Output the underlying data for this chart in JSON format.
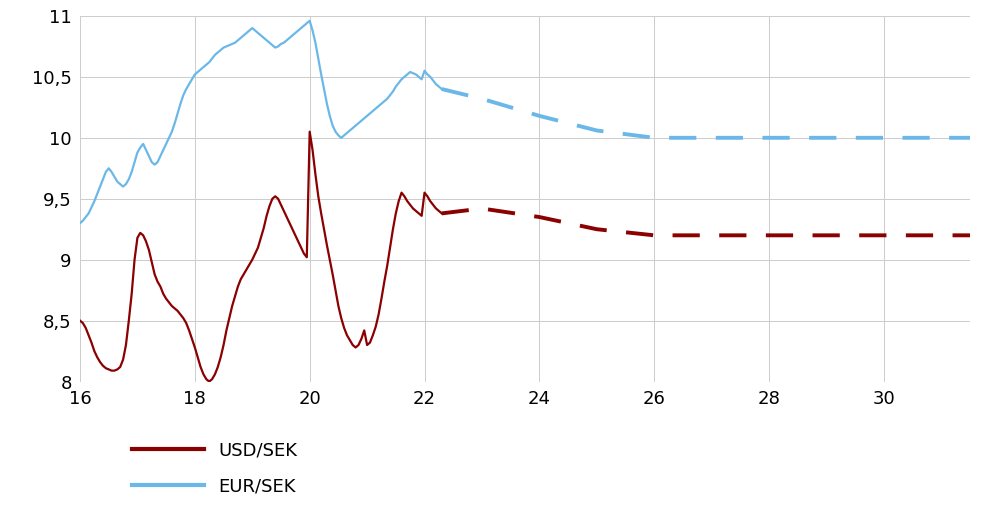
{
  "background_color": "#ffffff",
  "usd_color": "#8B0000",
  "eur_color": "#6BB8E8",
  "ylim": [
    8.0,
    11.0
  ],
  "xlim": [
    16,
    31.5
  ],
  "yticks": [
    8.0,
    8.5,
    9.0,
    9.5,
    10.0,
    10.5,
    11.0
  ],
  "xticks": [
    16,
    18,
    20,
    22,
    24,
    26,
    28,
    30
  ],
  "ytick_labels": [
    "8",
    "8,5",
    "9",
    "9,5",
    "10",
    "10,5",
    "11"
  ],
  "xtick_labels": [
    "16",
    "18",
    "20",
    "22",
    "24",
    "26",
    "28",
    "30"
  ],
  "legend_usd": "USD/SEK",
  "legend_eur": "EUR/SEK",
  "usd_solid_x": [
    16.0,
    16.05,
    16.1,
    16.15,
    16.2,
    16.25,
    16.3,
    16.35,
    16.4,
    16.45,
    16.5,
    16.55,
    16.6,
    16.65,
    16.7,
    16.75,
    16.8,
    16.85,
    16.9,
    16.95,
    17.0,
    17.05,
    17.1,
    17.15,
    17.2,
    17.25,
    17.3,
    17.35,
    17.4,
    17.45,
    17.5,
    17.55,
    17.6,
    17.65,
    17.7,
    17.75,
    17.8,
    17.85,
    17.9,
    17.95,
    18.0,
    18.05,
    18.1,
    18.15,
    18.2,
    18.25,
    18.3,
    18.35,
    18.4,
    18.45,
    18.5,
    18.55,
    18.6,
    18.65,
    18.7,
    18.75,
    18.8,
    18.85,
    18.9,
    18.95,
    19.0,
    19.05,
    19.1,
    19.15,
    19.2,
    19.25,
    19.3,
    19.35,
    19.4,
    19.45,
    19.5,
    19.55,
    19.6,
    19.65,
    19.7,
    19.75,
    19.8,
    19.85,
    19.9,
    19.95,
    20.0,
    20.05,
    20.1,
    20.15,
    20.2,
    20.25,
    20.3,
    20.35,
    20.4,
    20.45,
    20.5,
    20.55,
    20.6,
    20.65,
    20.7,
    20.75,
    20.8,
    20.85,
    20.9,
    20.95,
    21.0,
    21.05,
    21.1,
    21.15,
    21.2,
    21.25,
    21.3,
    21.35,
    21.4,
    21.45,
    21.5,
    21.55,
    21.6,
    21.65,
    21.7,
    21.75,
    21.8,
    21.85,
    21.9,
    21.95,
    22.0,
    22.05,
    22.1,
    22.15,
    22.2,
    22.25,
    22.3
  ],
  "usd_solid_y": [
    8.5,
    8.48,
    8.44,
    8.38,
    8.32,
    8.25,
    8.2,
    8.16,
    8.13,
    8.11,
    8.1,
    8.09,
    8.09,
    8.1,
    8.12,
    8.18,
    8.3,
    8.5,
    8.72,
    9.0,
    9.18,
    9.22,
    9.2,
    9.15,
    9.08,
    8.98,
    8.88,
    8.82,
    8.78,
    8.72,
    8.68,
    8.65,
    8.62,
    8.6,
    8.58,
    8.55,
    8.52,
    8.48,
    8.42,
    8.35,
    8.28,
    8.2,
    8.12,
    8.06,
    8.02,
    8.0,
    8.02,
    8.06,
    8.12,
    8.2,
    8.3,
    8.42,
    8.52,
    8.62,
    8.7,
    8.78,
    8.84,
    8.88,
    8.92,
    8.96,
    9.0,
    9.05,
    9.1,
    9.18,
    9.26,
    9.36,
    9.44,
    9.5,
    9.52,
    9.5,
    9.45,
    9.4,
    9.35,
    9.3,
    9.25,
    9.2,
    9.15,
    9.1,
    9.05,
    9.02,
    10.05,
    9.9,
    9.7,
    9.52,
    9.38,
    9.25,
    9.12,
    9.0,
    8.88,
    8.75,
    8.62,
    8.52,
    8.44,
    8.38,
    8.34,
    8.3,
    8.28,
    8.3,
    8.35,
    8.42,
    8.3,
    8.32,
    8.38,
    8.45,
    8.55,
    8.68,
    8.82,
    8.95,
    9.1,
    9.25,
    9.38,
    9.48,
    9.55,
    9.52,
    9.48,
    9.45,
    9.42,
    9.4,
    9.38,
    9.36,
    9.55,
    9.52,
    9.48,
    9.45,
    9.42,
    9.4,
    9.38
  ],
  "usd_dash_x": [
    22.3,
    23.0,
    24.0,
    25.0,
    26.0,
    27.0,
    28.0,
    29.0,
    30.0,
    31.0,
    31.5
  ],
  "usd_dash_y": [
    9.38,
    9.42,
    9.35,
    9.25,
    9.2,
    9.2,
    9.2,
    9.2,
    9.2,
    9.2,
    9.2
  ],
  "eur_solid_x": [
    16.0,
    16.05,
    16.1,
    16.15,
    16.2,
    16.25,
    16.3,
    16.35,
    16.4,
    16.45,
    16.5,
    16.55,
    16.6,
    16.65,
    16.7,
    16.75,
    16.8,
    16.85,
    16.9,
    16.95,
    17.0,
    17.05,
    17.1,
    17.15,
    17.2,
    17.25,
    17.3,
    17.35,
    17.4,
    17.45,
    17.5,
    17.55,
    17.6,
    17.65,
    17.7,
    17.75,
    17.8,
    17.85,
    17.9,
    17.95,
    18.0,
    18.05,
    18.1,
    18.15,
    18.2,
    18.25,
    18.3,
    18.35,
    18.4,
    18.45,
    18.5,
    18.55,
    18.6,
    18.65,
    18.7,
    18.75,
    18.8,
    18.85,
    18.9,
    18.95,
    19.0,
    19.05,
    19.1,
    19.15,
    19.2,
    19.25,
    19.3,
    19.35,
    19.4,
    19.45,
    19.5,
    19.55,
    19.6,
    19.65,
    19.7,
    19.75,
    19.8,
    19.85,
    19.9,
    19.95,
    20.0,
    20.05,
    20.1,
    20.15,
    20.2,
    20.25,
    20.3,
    20.35,
    20.4,
    20.45,
    20.5,
    20.55,
    20.6,
    20.65,
    20.7,
    20.75,
    20.8,
    20.85,
    20.9,
    20.95,
    21.0,
    21.05,
    21.1,
    21.15,
    21.2,
    21.25,
    21.3,
    21.35,
    21.4,
    21.45,
    21.5,
    21.55,
    21.6,
    21.65,
    21.7,
    21.75,
    21.8,
    21.85,
    21.9,
    21.95,
    22.0,
    22.05,
    22.1,
    22.15,
    22.2,
    22.25,
    22.3
  ],
  "eur_solid_y": [
    9.3,
    9.32,
    9.35,
    9.38,
    9.43,
    9.48,
    9.54,
    9.6,
    9.66,
    9.72,
    9.75,
    9.72,
    9.68,
    9.64,
    9.62,
    9.6,
    9.62,
    9.66,
    9.72,
    9.8,
    9.88,
    9.92,
    9.95,
    9.9,
    9.85,
    9.8,
    9.78,
    9.8,
    9.85,
    9.9,
    9.95,
    10.0,
    10.05,
    10.12,
    10.2,
    10.28,
    10.35,
    10.4,
    10.44,
    10.48,
    10.52,
    10.54,
    10.56,
    10.58,
    10.6,
    10.62,
    10.65,
    10.68,
    10.7,
    10.72,
    10.74,
    10.75,
    10.76,
    10.77,
    10.78,
    10.8,
    10.82,
    10.84,
    10.86,
    10.88,
    10.9,
    10.88,
    10.86,
    10.84,
    10.82,
    10.8,
    10.78,
    10.76,
    10.74,
    10.75,
    10.77,
    10.78,
    10.8,
    10.82,
    10.84,
    10.86,
    10.88,
    10.9,
    10.92,
    10.94,
    10.96,
    10.88,
    10.78,
    10.65,
    10.52,
    10.4,
    10.28,
    10.18,
    10.1,
    10.05,
    10.02,
    10.0,
    10.02,
    10.04,
    10.06,
    10.08,
    10.1,
    10.12,
    10.14,
    10.16,
    10.18,
    10.2,
    10.22,
    10.24,
    10.26,
    10.28,
    10.3,
    10.32,
    10.35,
    10.38,
    10.42,
    10.45,
    10.48,
    10.5,
    10.52,
    10.54,
    10.53,
    10.52,
    10.5,
    10.48,
    10.55,
    10.52,
    10.5,
    10.47,
    10.44,
    10.42,
    10.4
  ],
  "eur_dash_x": [
    22.3,
    23.0,
    24.0,
    25.0,
    26.0,
    27.0,
    28.0,
    29.0,
    30.0,
    31.0,
    31.5
  ],
  "eur_dash_y": [
    10.4,
    10.32,
    10.18,
    10.06,
    10.0,
    10.0,
    10.0,
    10.0,
    10.0,
    10.0,
    10.0
  ],
  "linewidth_solid": 1.6,
  "linewidth_dash": 2.8,
  "fontsize_tick": 13,
  "fontsize_legend": 13
}
